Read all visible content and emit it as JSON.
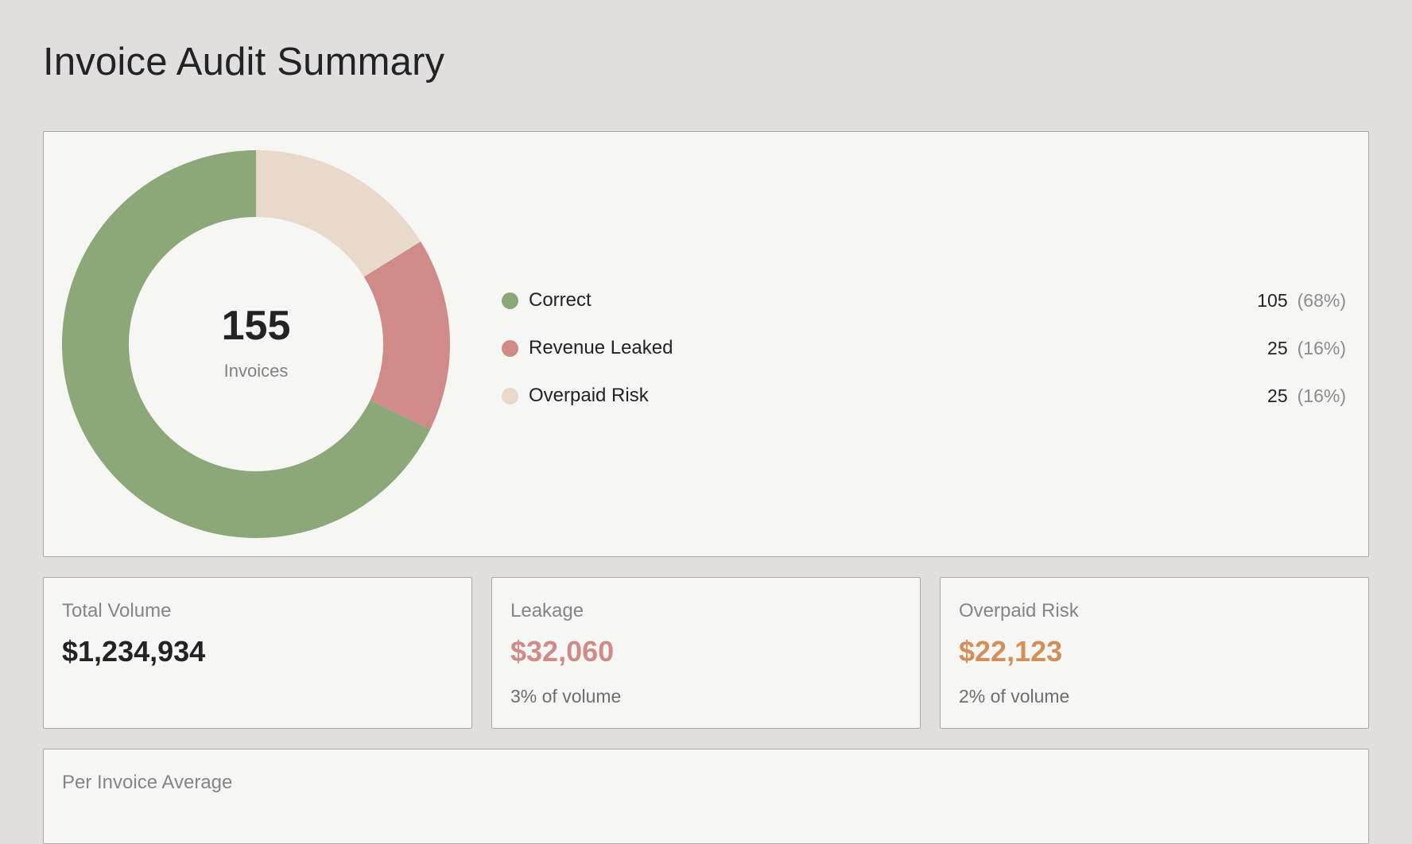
{
  "page": {
    "title": "Invoice Audit Summary"
  },
  "chart_data": {
    "type": "pie",
    "style": "donut",
    "title": "",
    "center_value": "155",
    "center_label": "Invoices",
    "categories": [
      "Correct",
      "Revenue Leaked",
      "Overpaid Risk"
    ],
    "values": [
      105,
      25,
      25
    ],
    "percents": [
      "(68%)",
      "(16%)",
      "(16%)"
    ],
    "colors": [
      "#8ca878",
      "#cf8b87",
      "#e9d9cb"
    ]
  },
  "legend": [
    {
      "label": "Correct",
      "count": "105",
      "pct": "(68%)",
      "color": "#8ca878"
    },
    {
      "label": "Revenue Leaked",
      "count": "25",
      "pct": "(16%)",
      "color": "#cf8b87"
    },
    {
      "label": "Overpaid Risk",
      "count": "25",
      "pct": "(16%)",
      "color": "#e9d9cb"
    }
  ],
  "stats": {
    "total": {
      "label": "Total Volume",
      "value": "$1,234,934",
      "color": "#232323"
    },
    "leakage": {
      "label": "Leakage",
      "value": "$32,060",
      "sub": "3% of volume",
      "color": "#cf8b87"
    },
    "overpaid": {
      "label": "Overpaid Risk",
      "value": "$22,123",
      "sub": "2% of volume",
      "color": "#d28f57"
    }
  },
  "average": {
    "label": "Per Invoice Average"
  }
}
